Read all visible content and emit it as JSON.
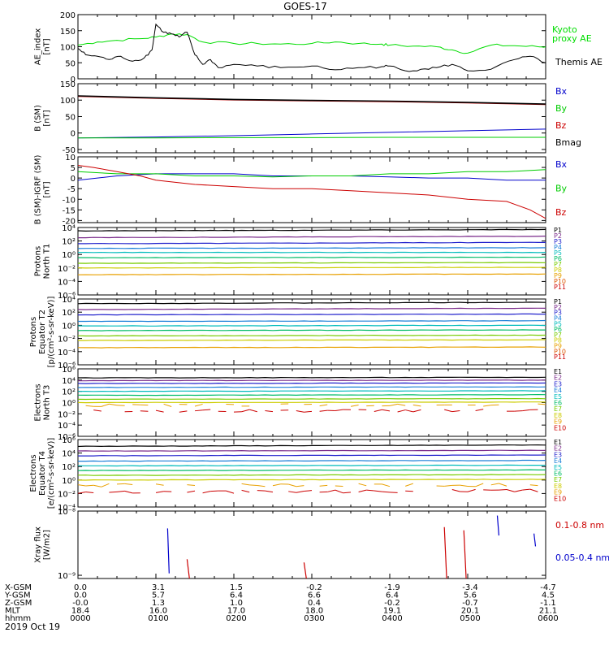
{
  "title": "GOES-17",
  "date_label": "2019 Oct 19",
  "ephemeris": {
    "rows": [
      {
        "label": "X-GSM",
        "values": [
          "0.0",
          "3.1",
          "1.5",
          "-0.2",
          "-1.9",
          "-3.4",
          "-4.7"
        ]
      },
      {
        "label": "Y-GSM",
        "values": [
          "0.0",
          "5.7",
          "6.4",
          "6.6",
          "6.4",
          "5.6",
          "4.5"
        ]
      },
      {
        "label": "Z-GSM",
        "values": [
          "-0.0",
          "1.3",
          "1.0",
          "0.4",
          "-0.2",
          "-0.7",
          "-1.1"
        ]
      },
      {
        "label": "MLT",
        "values": [
          "18.4",
          "16.0",
          "17.0",
          "18.0",
          "19.1",
          "20.1",
          "21.1"
        ]
      },
      {
        "label": "hhmm",
        "values": [
          "0000",
          "0100",
          "0200",
          "0300",
          "0400",
          "0500",
          "0600"
        ]
      }
    ]
  },
  "chart_data": [
    {
      "type": "line",
      "ylabel_lines": [
        "AE_index",
        "[nT]"
      ],
      "ylim": [
        0,
        200
      ],
      "y_ticks": [
        "0",
        "50",
        "100",
        "150",
        "200"
      ],
      "x_range_hours": [
        0,
        6
      ],
      "series": [
        {
          "name": "Kyoto proxy AE",
          "label_lines": [
            "Kyoto",
            "proxy AE"
          ],
          "color": "#00dd00",
          "x": [
            0,
            0.25,
            0.5,
            0.8,
            1.0,
            1.2,
            1.4,
            1.6,
            2.0,
            2.3,
            2.6,
            3.0,
            3.3,
            3.6,
            3.9,
            4.0,
            4.3,
            4.6,
            4.8,
            5.0,
            5.3,
            5.6,
            5.9,
            6.0
          ],
          "y": [
            105,
            115,
            120,
            125,
            130,
            140,
            138,
            115,
            110,
            110,
            108,
            110,
            115,
            110,
            108,
            105,
            102,
            100,
            90,
            80,
            105,
            103,
            100,
            100
          ]
        },
        {
          "name": "Themis AE",
          "label_lines": [
            "Themis AE"
          ],
          "color": "#000000",
          "x": [
            0,
            0.1,
            0.25,
            0.4,
            0.55,
            0.7,
            0.85,
            0.95,
            1.0,
            1.1,
            1.2,
            1.3,
            1.4,
            1.5,
            1.6,
            1.7,
            1.8,
            2.0,
            2.3,
            2.6,
            3.0,
            3.3,
            3.6,
            3.9,
            4.0,
            4.2,
            4.4,
            4.6,
            4.8,
            5.0,
            5.3,
            5.6,
            5.8,
            6.0
          ],
          "y": [
            95,
            75,
            70,
            60,
            70,
            55,
            65,
            90,
            170,
            145,
            140,
            130,
            145,
            75,
            45,
            60,
            35,
            45,
            40,
            35,
            40,
            28,
            35,
            38,
            40,
            25,
            30,
            35,
            45,
            25,
            30,
            60,
            70,
            50
          ]
        }
      ]
    },
    {
      "type": "line",
      "ylabel_lines": [
        "B (SM)",
        "[nT]"
      ],
      "ylim": [
        -60,
        150
      ],
      "y_ticks": [
        "-50",
        "0",
        "50",
        "100",
        "150"
      ],
      "y_tick_values": [
        -50,
        0,
        50,
        100,
        150
      ],
      "x_range_hours": [
        0,
        6
      ],
      "series": [
        {
          "name": "Bx",
          "color": "#0000cc",
          "x": [
            0,
            1,
            2,
            3,
            4,
            5,
            6
          ],
          "y": [
            -15,
            -12,
            -8,
            -3,
            2,
            7,
            12
          ]
        },
        {
          "name": "By",
          "color": "#00cc00",
          "x": [
            0,
            1,
            2,
            3,
            4,
            5,
            6
          ],
          "y": [
            -15,
            -15,
            -14,
            -14,
            -13,
            -13,
            -13
          ]
        },
        {
          "name": "Bz",
          "color": "#cc0000",
          "x": [
            0,
            1,
            2,
            3,
            4,
            5,
            6
          ],
          "y": [
            112,
            106,
            101,
            98,
            96,
            92,
            87
          ]
        },
        {
          "name": "Bmag",
          "color": "#000000",
          "x": [
            0,
            1,
            2,
            3,
            4,
            5,
            6
          ],
          "y": [
            113,
            107,
            102,
            99,
            97,
            93,
            88
          ]
        }
      ]
    },
    {
      "type": "line",
      "ylabel_lines": [
        "B (SM)-IGRF (SM)",
        "[nT]"
      ],
      "ylim": [
        -21,
        10
      ],
      "y_ticks": [
        "-20",
        "-15",
        "-10",
        "-5",
        "0",
        "5",
        "10"
      ],
      "y_tick_values": [
        -20,
        -15,
        -10,
        -5,
        0,
        5,
        10
      ],
      "x_range_hours": [
        0,
        6
      ],
      "series": [
        {
          "name": "Bx",
          "color": "#0000cc",
          "x": [
            0,
            0.5,
            1,
            1.5,
            2,
            2.5,
            3,
            3.5,
            4,
            4.5,
            5,
            5.5,
            6
          ],
          "y": [
            -1,
            1,
            2,
            2,
            2,
            1,
            1,
            1,
            0.5,
            0,
            0,
            -1,
            -1
          ]
        },
        {
          "name": "By",
          "color": "#00cc00",
          "x": [
            0,
            0.5,
            1,
            1.5,
            2,
            2.5,
            3,
            3.5,
            4,
            4.5,
            5,
            5.5,
            6
          ],
          "y": [
            3,
            2,
            2,
            1,
            1,
            0.5,
            1,
            1,
            2,
            2,
            3,
            3,
            4
          ]
        },
        {
          "name": "Bz",
          "color": "#cc0000",
          "x": [
            0,
            0.2,
            0.5,
            0.8,
            1.0,
            1.5,
            2.0,
            2.5,
            3.0,
            3.5,
            4.0,
            4.5,
            5.0,
            5.5,
            5.8,
            6.0
          ],
          "y": [
            6,
            5,
            3,
            1,
            -1,
            -3,
            -4,
            -5,
            -5,
            -6,
            -7,
            -8,
            -10,
            -11,
            -15,
            -19
          ]
        }
      ]
    },
    {
      "type": "line",
      "log_y": true,
      "ylabel_lines": [
        "Protons",
        "North T1"
      ],
      "y_ticks": [
        "10⁴",
        "10²",
        "10⁰",
        "10⁻²",
        "10⁻⁴",
        "10⁻⁶"
      ],
      "y_tick_exponents": [
        4,
        2,
        0,
        -2,
        -4,
        -6
      ],
      "x_range_hours": [
        0,
        6
      ],
      "series": [
        {
          "name": "P1",
          "color": "#000000",
          "y": [
            3.5,
            3.7
          ]
        },
        {
          "name": "P2",
          "color": "#7a2a8a",
          "y": [
            2.5,
            2.7
          ]
        },
        {
          "name": "P3",
          "color": "#2222cc",
          "y": [
            1.6,
            1.8
          ]
        },
        {
          "name": "P4",
          "color": "#1a7fd8",
          "y": [
            0.9,
            1.0
          ]
        },
        {
          "name": "P5",
          "color": "#00bbbb",
          "y": [
            0.3,
            0.3
          ]
        },
        {
          "name": "P6",
          "color": "#00bb66",
          "y": [
            -0.5,
            -0.4
          ]
        },
        {
          "name": "P7",
          "color": "#77cc00",
          "y": [
            -1.3,
            -1.2
          ]
        },
        {
          "name": "P8",
          "color": "#cccc00",
          "y": [
            -2.0,
            -1.9
          ]
        },
        {
          "name": "P9",
          "color": "#e8a000",
          "y": [
            -3.0,
            -2.9
          ]
        },
        {
          "name": "P10",
          "color": "#dd5500",
          "y": []
        },
        {
          "name": "P11",
          "color": "#cc0000",
          "y": []
        }
      ]
    },
    {
      "type": "line",
      "log_y": true,
      "ylabel_lines": [
        "Protons",
        "Equator T2",
        "[p/(cm²-s-sr-keV)]"
      ],
      "y_ticks": [
        "10⁴",
        "10²",
        "10⁰",
        "10⁻²",
        "10⁻⁴",
        "10⁻⁶"
      ],
      "y_tick_exponents": [
        4,
        2,
        0,
        -2,
        -4,
        -6
      ],
      "x_range_hours": [
        0,
        6
      ],
      "series": [
        {
          "name": "P1",
          "color": "#000000",
          "y": [
            3.3,
            3.5
          ]
        },
        {
          "name": "P2",
          "color": "#7a2a8a",
          "y": [
            2.4,
            2.6
          ]
        },
        {
          "name": "P3",
          "color": "#2222cc",
          "y": [
            1.6,
            1.7
          ]
        },
        {
          "name": "P4",
          "color": "#1a7fd8",
          "y": [
            0.6,
            0.7
          ]
        },
        {
          "name": "P5",
          "color": "#00bbbb",
          "y": [
            -0.1,
            0.0
          ]
        },
        {
          "name": "P6",
          "color": "#00bb66",
          "y": [
            -0.8,
            -0.7
          ]
        },
        {
          "name": "P7",
          "color": "#77cc00",
          "y": [
            -1.6,
            -1.5
          ]
        },
        {
          "name": "P8",
          "color": "#cccc00",
          "y": [
            -2.3,
            -2.2
          ]
        },
        {
          "name": "P9",
          "color": "#e8a000",
          "y": [
            -3.4,
            -3.3
          ]
        },
        {
          "name": "P10",
          "color": "#dd5500",
          "y": []
        },
        {
          "name": "P11",
          "color": "#cc0000",
          "y": []
        }
      ]
    },
    {
      "type": "line",
      "log_y": true,
      "ylabel_lines": [
        "Electrons",
        "North T3"
      ],
      "y_ticks": [
        "10⁶",
        "10⁴",
        "10²",
        "10⁰",
        "10⁻²",
        "10⁻⁴",
        "10⁻⁶"
      ],
      "y_tick_exponents": [
        6,
        4,
        2,
        0,
        -2,
        -4,
        -6
      ],
      "x_range_hours": [
        0,
        6
      ],
      "series": [
        {
          "name": "E1",
          "color": "#000000",
          "y": [
            4.4,
            4.5
          ]
        },
        {
          "name": "E2",
          "color": "#7a2a8a",
          "y": [
            3.9,
            4.0
          ]
        },
        {
          "name": "E3",
          "color": "#2222cc",
          "y": [
            3.4,
            3.5
          ]
        },
        {
          "name": "E4",
          "color": "#1a7fd8",
          "y": [
            2.7,
            2.8
          ]
        },
        {
          "name": "E5",
          "color": "#00bbbb",
          "y": [
            2.0,
            2.1
          ]
        },
        {
          "name": "E6",
          "color": "#00bb66",
          "y": [
            1.3,
            1.4
          ]
        },
        {
          "name": "E7",
          "color": "#77cc00",
          "y": [
            0.6,
            0.7
          ]
        },
        {
          "name": "E8",
          "color": "#cccc00",
          "y": [
            0.0,
            0.1
          ]
        },
        {
          "name": "E9",
          "color": "#e8a000",
          "y": [
            -0.5,
            -0.4
          ]
        },
        {
          "name": "E10",
          "color": "#cc0000",
          "y": [
            -1.5,
            -1.4
          ]
        }
      ]
    },
    {
      "type": "line",
      "log_y": true,
      "ylabel_lines": [
        "Electrons",
        "Equator T4",
        "[e/(cm²-s-sr-keV)]"
      ],
      "y_ticks": [
        "10⁶",
        "10⁴",
        "10²",
        "10⁰",
        "10⁻²",
        "10⁻⁴"
      ],
      "y_tick_exponents": [
        6,
        4,
        2,
        0,
        -2,
        -4
      ],
      "x_range_hours": [
        0,
        6
      ],
      "series": [
        {
          "name": "E1",
          "color": "#000000",
          "y": [
            5.0,
            5.2
          ]
        },
        {
          "name": "E2",
          "color": "#7a2a8a",
          "y": [
            4.3,
            4.4
          ]
        },
        {
          "name": "E3",
          "color": "#2222cc",
          "y": [
            3.6,
            3.7
          ]
        },
        {
          "name": "E4",
          "color": "#1a7fd8",
          "y": [
            2.8,
            2.9
          ]
        },
        {
          "name": "E5",
          "color": "#00bbbb",
          "y": [
            2.1,
            2.2
          ]
        },
        {
          "name": "E6",
          "color": "#00bb66",
          "y": [
            1.4,
            1.5
          ]
        },
        {
          "name": "E7",
          "color": "#77cc00",
          "y": [
            0.7,
            0.8
          ]
        },
        {
          "name": "E8",
          "color": "#cccc00",
          "y": [
            0.0,
            0.1
          ]
        },
        {
          "name": "E9",
          "color": "#e8a000",
          "y": [
            -0.8,
            -0.7
          ]
        },
        {
          "name": "E10",
          "color": "#cc0000",
          "y": [
            -1.8,
            -1.6
          ]
        }
      ]
    },
    {
      "type": "line",
      "log_y": true,
      "ylabel_lines": [
        "Xray flux",
        "[W/m2]"
      ],
      "y_ticks": [
        "10⁻⁸",
        "10⁻⁹"
      ],
      "y_tick_exponents": [
        -8,
        -9
      ],
      "ylim_exponents": [
        -9.05,
        -8.0
      ],
      "x_range_hours": [
        0,
        6
      ],
      "series": [
        {
          "name": "0.1-0.8 nm",
          "color": "#cc0000",
          "x": [
            1.4,
            1.43,
            2.9,
            2.93,
            4.7,
            4.73,
            4.95,
            4.98
          ],
          "y": [
            -8.75,
            -9.05,
            -8.8,
            -9.05,
            -8.25,
            -9.05,
            -8.3,
            -9.05
          ]
        },
        {
          "name": "0.05-0.4 nm",
          "color": "#0000cc",
          "x": [
            1.15,
            1.17,
            5.38,
            5.4,
            5.85,
            5.87
          ],
          "y": [
            -8.27,
            -8.97,
            -8.07,
            -8.38,
            -8.35,
            -8.55
          ]
        }
      ]
    }
  ]
}
